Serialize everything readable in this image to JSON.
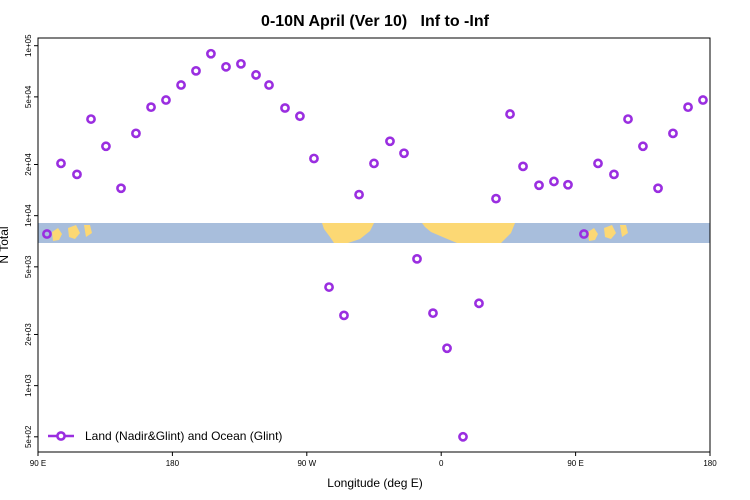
{
  "chart_data": {
    "type": "scatter",
    "title": "0-10N April (Ver 10)   Inf to -Inf",
    "x_label": "Longitude (deg E)",
    "y_label": "N Total",
    "y_log": true,
    "legend": "bottom-left",
    "xlim": [
      90,
      540
    ],
    "xticks": [
      {
        "value": 90,
        "label": "90 E"
      },
      {
        "value": 180,
        "label": "180"
      },
      {
        "value": 270,
        "label": "90 W"
      },
      {
        "value": 360,
        "label": "0"
      },
      {
        "value": 450,
        "label": "90 E"
      },
      {
        "value": 540,
        "label": "180"
      }
    ],
    "ylim": [
      407,
      111000
    ],
    "yticks": [
      {
        "value": 500,
        "label": "5e+02"
      },
      {
        "value": 1000,
        "label": "1e+03"
      },
      {
        "value": 2000,
        "label": "2e+03"
      },
      {
        "value": 5000,
        "label": "5e+03"
      },
      {
        "value": 10000,
        "label": "1e+04"
      },
      {
        "value": 20000,
        "label": "2e+04"
      },
      {
        "value": 50000,
        "label": "5e+04"
      },
      {
        "value": 100000,
        "label": "1e+05"
      }
    ],
    "series": [
      {
        "name": "Land (Nadir&Glint) and Ocean (Glint)",
        "color": "#9a2ee0",
        "x": [
          96,
          105.4,
          116.1,
          125.5,
          135.5,
          145.6,
          155.6,
          165.7,
          175.7,
          185.8,
          195.8,
          205.8,
          215.9,
          225.9,
          236,
          244.7,
          255.4,
          265.4,
          274.8,
          284.9,
          294.9,
          305,
          315,
          325.7,
          335.1,
          343.8,
          354.5,
          363.9,
          374.6,
          385.3,
          396.7,
          406.1,
          414.8,
          425.5,
          435.5,
          444.9,
          455.6,
          465,
          475.7,
          485.1,
          495.1,
          505.2,
          515.2,
          525.3,
          535.3
        ],
        "values": [
          7800,
          20300,
          17500,
          37000,
          25600,
          14500,
          30500,
          43500,
          47900,
          58700,
          71100,
          89700,
          75100,
          78200,
          67300,
          58700,
          43000,
          38500,
          21700,
          3800,
          2590,
          13300,
          20300,
          27400,
          23300,
          5570,
          2670,
          1660,
          500,
          3050,
          12600,
          39600,
          19500,
          15100,
          15900,
          15200,
          7800,
          20300,
          17500,
          37000,
          25600,
          14500,
          30500,
          43500,
          47900
        ]
      }
    ]
  }
}
